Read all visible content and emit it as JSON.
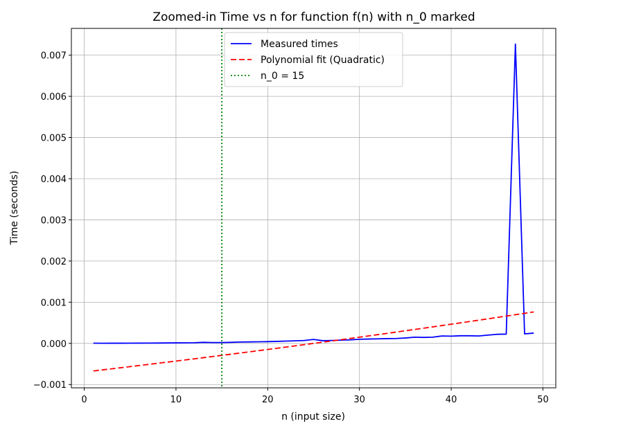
{
  "chart_data": {
    "type": "line",
    "title": "Zoomed-in Time vs n for function f(n) with n_0 marked",
    "xlabel": "n (input size)",
    "ylabel": "Time (seconds)",
    "xlim": [
      -1.4,
      51.4
    ],
    "ylim": [
      -0.00108,
      0.00765
    ],
    "xticks": [
      0,
      10,
      20,
      30,
      40,
      50
    ],
    "xtick_labels": [
      "0",
      "10",
      "20",
      "30",
      "40",
      "50"
    ],
    "yticks": [
      -0.001,
      0.0,
      0.001,
      0.002,
      0.003,
      0.004,
      0.005,
      0.006,
      0.007
    ],
    "ytick_labels": [
      "−0.001",
      "0.000",
      "0.001",
      "0.002",
      "0.003",
      "0.004",
      "0.005",
      "0.006",
      "0.007"
    ],
    "grid": true,
    "legend_position": "top-center",
    "series": [
      {
        "name": "Measured times",
        "style": "solid",
        "color": "#0000ff",
        "x": [
          1,
          2,
          3,
          4,
          5,
          6,
          7,
          8,
          9,
          10,
          11,
          12,
          13,
          14,
          15,
          16,
          17,
          18,
          19,
          20,
          21,
          22,
          23,
          24,
          25,
          26,
          27,
          28,
          29,
          30,
          31,
          32,
          33,
          34,
          35,
          36,
          37,
          38,
          39,
          40,
          41,
          42,
          43,
          44,
          45,
          46,
          47,
          48,
          49
        ],
        "y": [
          5e-06,
          3e-06,
          4e-06,
          4e-06,
          5e-06,
          6e-06,
          7e-06,
          8e-06,
          1e-05,
          1.2e-05,
          1.3e-05,
          1.5e-05,
          2.5e-05,
          2e-05,
          2e-05,
          2.5e-05,
          3.2e-05,
          3.5e-05,
          3.8e-05,
          4.2e-05,
          4.8e-05,
          5.5e-05,
          6.2e-05,
          7e-05,
          9.5e-05,
          6.5e-05,
          7e-05,
          7.8e-05,
          8.5e-05,
          0.0001,
          0.000105,
          0.00011,
          0.000115,
          0.000118,
          0.00013,
          0.00015,
          0.000145,
          0.00015,
          0.00018,
          0.000175,
          0.000185,
          0.000185,
          0.00018,
          0.0002,
          0.00022,
          0.000225,
          0.00727,
          0.00023,
          0.00025
        ]
      },
      {
        "name": "Polynomial fit (Quadratic)",
        "style": "dashed",
        "color": "#ff0000",
        "x": [
          1,
          2,
          3,
          4,
          5,
          6,
          7,
          8,
          9,
          10,
          11,
          12,
          13,
          14,
          15,
          16,
          17,
          18,
          19,
          20,
          21,
          22,
          23,
          24,
          25,
          26,
          27,
          28,
          29,
          30,
          31,
          32,
          33,
          34,
          35,
          36,
          37,
          38,
          39,
          40,
          41,
          42,
          43,
          44,
          45,
          46,
          47,
          48,
          49
        ],
        "y": [
          -0.00067,
          -0.000644,
          -0.000618,
          -0.000591,
          -0.000565,
          -0.000538,
          -0.000511,
          -0.000484,
          -0.000457,
          -0.00043,
          -0.000403,
          -0.000375,
          -0.000347,
          -0.000319,
          -0.000291,
          -0.000263,
          -0.000234,
          -0.000206,
          -0.000177,
          -0.000148,
          -0.000119,
          -9e-05,
          -6e-05,
          -3.1e-05,
          -1e-06,
          2.9e-05,
          5.9e-05,
          8.9e-05,
          0.00012,
          0.00015,
          0.000181,
          0.000212,
          0.000243,
          0.000274,
          0.000306,
          0.000337,
          0.000369,
          0.000401,
          0.000433,
          0.000465,
          0.000498,
          0.00053,
          0.000563,
          0.000596,
          0.000629,
          0.000663,
          0.000696,
          0.00073,
          0.000764
        ]
      },
      {
        "name": "n_0 = 15",
        "style": "dotted",
        "color": "#008000",
        "vline_x": 15
      }
    ]
  }
}
